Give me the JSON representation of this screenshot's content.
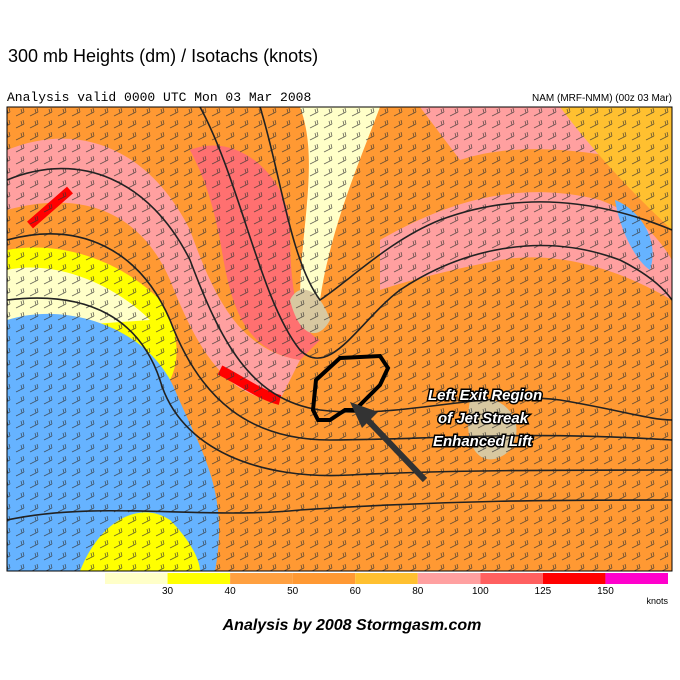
{
  "header": {
    "title": "300 mb Heights (dm) / Isotachs (knots)",
    "valid": "Analysis valid 0000 UTC Mon 03 Mar 2008",
    "model": "NAM (MRF-NMM) (00z 03 Mar)"
  },
  "annotation": {
    "lines": [
      "Left Exit Region",
      "of Jet Streak",
      "Enhanced Lift"
    ]
  },
  "legend": {
    "ticks": [
      30,
      40,
      50,
      60,
      80,
      100,
      125,
      150
    ],
    "colors": [
      "#ffffc8",
      "#ffff00",
      "#ffa040",
      "#ff9933",
      "#ffc030",
      "#ffa0a0",
      "#ff6060",
      "#ff0000",
      "#ff00cc"
    ],
    "unit": "knots"
  },
  "footer": "Analysis by 2008 Stormgasm.com"
}
